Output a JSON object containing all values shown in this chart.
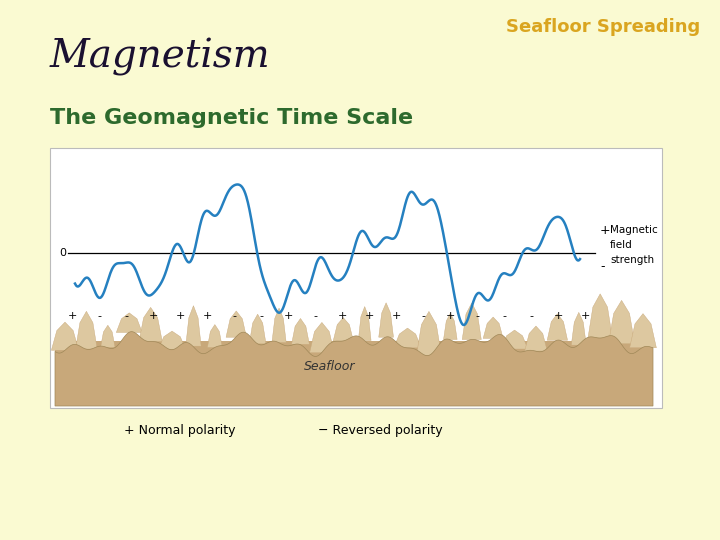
{
  "background_color": "#FAFAD2",
  "title_text": "Seafloor Spreading",
  "title_color": "#DAA520",
  "title_fontsize": 13,
  "magnetism_text": "Magnetism",
  "magnetism_color": "#1a1030",
  "magnetism_fontsize": 28,
  "subtitle_text": "The Geomagnetic Time Scale",
  "subtitle_color": "#2d6a2d",
  "subtitle_fontsize": 16,
  "wave_color": "#2580c0",
  "zero_line_color": "#000000",
  "panel_bg": "#ffffff",
  "polarity_row": [
    "+",
    " -",
    " -",
    "+",
    " +",
    " +",
    " -",
    " -",
    "+",
    " -",
    "+",
    " +",
    " +",
    " -",
    "+",
    " -",
    " -",
    " -",
    "+",
    " +"
  ],
  "legend_plus": "+",
  "legend_minus": "-",
  "legend_label": "Magnetic\nfield\nstrength",
  "label_0": "0",
  "seafloor_label": "Seafloor",
  "normal_polarity": "+ Normal polarity",
  "reversed_polarity": "− Reversed polarity",
  "seafloor_fill": "#c8a87a",
  "seafloor_light": "#ddc8a0",
  "seafloor_dark": "#a08858"
}
